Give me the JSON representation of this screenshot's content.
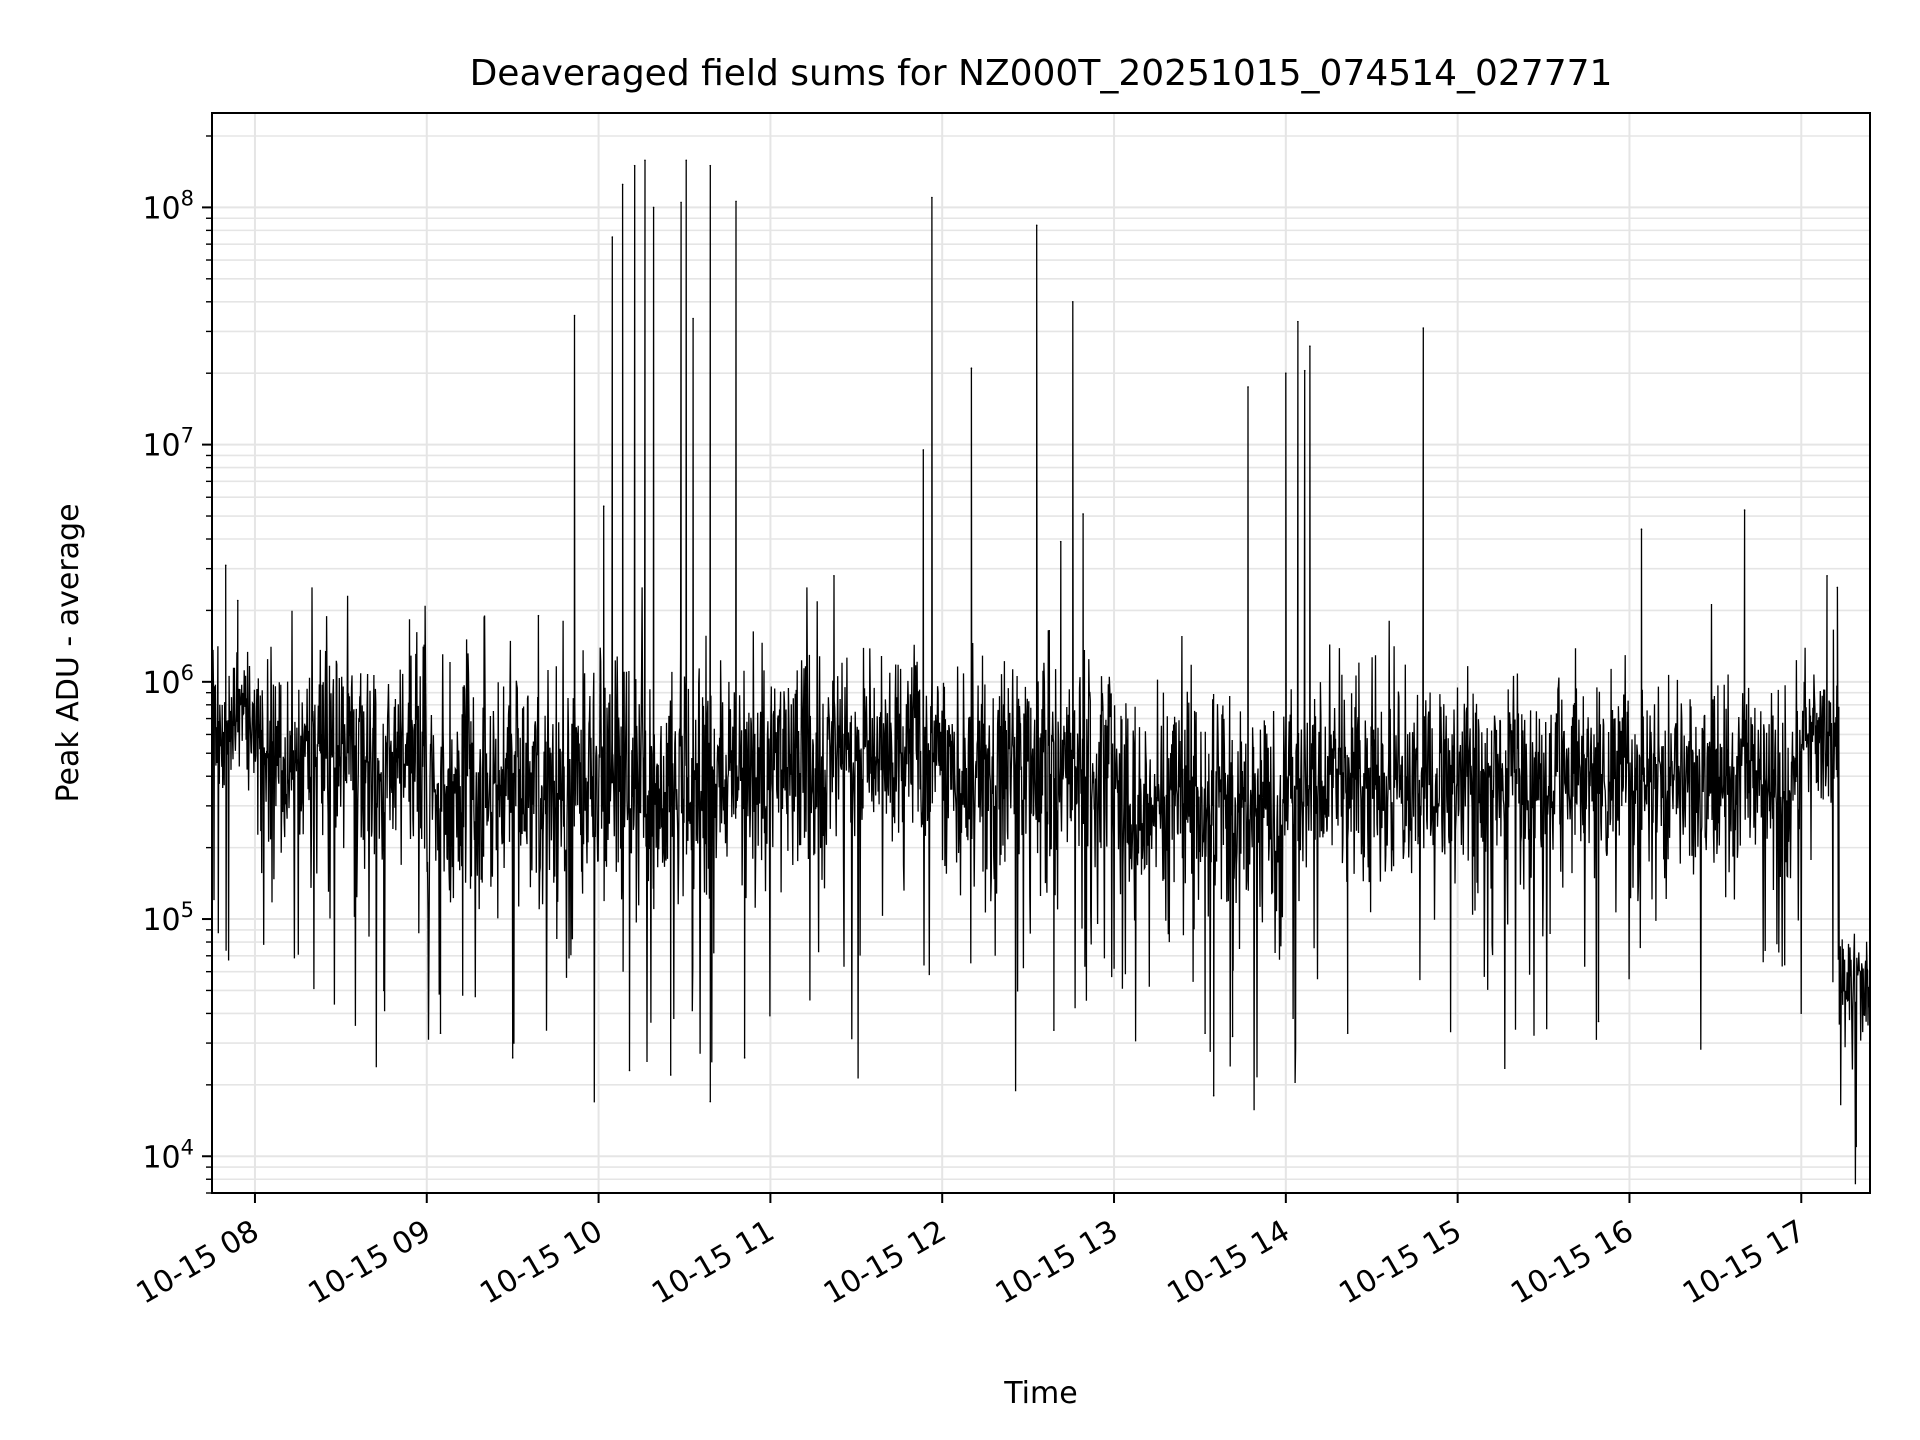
{
  "chart_data": {
    "type": "line",
    "title": "Deaveraged field sums for NZ000T_20251015_074514_027771",
    "xlabel": "Time",
    "ylabel": "Peak ADU - average",
    "yscale": "log",
    "ylim": [
      7000,
      250000000
    ],
    "xlim_hours": [
      7.75,
      17.4
    ],
    "grid": true,
    "grid_minor_y": true,
    "x_tick_values": [
      8,
      9,
      10,
      11,
      12,
      13,
      14,
      15,
      16,
      17
    ],
    "x_tick_labels": [
      "10-15 08",
      "10-15 09",
      "10-15 10",
      "10-15 11",
      "10-15 12",
      "10-15 13",
      "10-15 14",
      "10-15 15",
      "10-15 16",
      "10-15 17"
    ],
    "y_ticks": [
      {
        "value": 10000,
        "base": "10",
        "exp": "4"
      },
      {
        "value": 100000,
        "base": "10",
        "exp": "5"
      },
      {
        "value": 1000000,
        "base": "10",
        "exp": "6"
      },
      {
        "value": 10000000,
        "base": "10",
        "exp": "7"
      },
      {
        "value": 100000000,
        "base": "10",
        "exp": "8"
      }
    ],
    "line_color": "#000000",
    "grid_color": "#e5e5e5",
    "spikes": [
      {
        "t": 7.83,
        "v": 3100000
      },
      {
        "t": 7.9,
        "v": 2200000
      },
      {
        "t": 9.65,
        "v": 1900000
      },
      {
        "t": 9.86,
        "v": 35000000
      },
      {
        "t": 10.03,
        "v": 5500000
      },
      {
        "t": 10.08,
        "v": 75000000
      },
      {
        "t": 10.14,
        "v": 125000000
      },
      {
        "t": 10.21,
        "v": 150000000
      },
      {
        "t": 10.27,
        "v": 158000000
      },
      {
        "t": 10.32,
        "v": 100000000
      },
      {
        "t": 10.48,
        "v": 105000000
      },
      {
        "t": 10.51,
        "v": 158000000
      },
      {
        "t": 10.55,
        "v": 34000000
      },
      {
        "t": 10.65,
        "v": 150000000
      },
      {
        "t": 10.8,
        "v": 106000000
      },
      {
        "t": 11.37,
        "v": 2800000
      },
      {
        "t": 11.89,
        "v": 9500000
      },
      {
        "t": 11.94,
        "v": 110000000
      },
      {
        "t": 12.17,
        "v": 21000000
      },
      {
        "t": 12.55,
        "v": 84000000
      },
      {
        "t": 12.69,
        "v": 3900000
      },
      {
        "t": 12.76,
        "v": 40000000
      },
      {
        "t": 12.82,
        "v": 5100000
      },
      {
        "t": 13.78,
        "v": 17500000
      },
      {
        "t": 14.0,
        "v": 20000000
      },
      {
        "t": 14.07,
        "v": 33000000
      },
      {
        "t": 14.11,
        "v": 20500000
      },
      {
        "t": 14.14,
        "v": 26000000
      },
      {
        "t": 14.8,
        "v": 31000000
      },
      {
        "t": 16.07,
        "v": 4400000
      },
      {
        "t": 16.67,
        "v": 5300000
      },
      {
        "t": 17.15,
        "v": 2800000
      },
      {
        "t": 17.21,
        "v": 2500000
      }
    ],
    "dips": [
      {
        "t": 8.75,
        "v": 50000
      },
      {
        "t": 9.08,
        "v": 33000
      },
      {
        "t": 9.5,
        "v": 26000
      },
      {
        "t": 10.18,
        "v": 23000
      },
      {
        "t": 10.42,
        "v": 22000
      },
      {
        "t": 10.65,
        "v": 17000
      },
      {
        "t": 10.85,
        "v": 26000
      },
      {
        "t": 12.65,
        "v": 34000
      },
      {
        "t": 13.53,
        "v": 33000
      },
      {
        "t": 13.58,
        "v": 18000
      },
      {
        "t": 13.69,
        "v": 32000
      },
      {
        "t": 14.36,
        "v": 33000
      },
      {
        "t": 15.82,
        "v": 37000
      },
      {
        "t": 17.32,
        "v": 11000
      }
    ],
    "baseline_segments": [
      {
        "from": 7.75,
        "to": 8.0,
        "median": 650000,
        "spread": 0.35
      },
      {
        "from": 8.0,
        "to": 9.0,
        "median": 500000,
        "spread": 0.55
      },
      {
        "from": 9.0,
        "to": 10.0,
        "median": 330000,
        "spread": 0.65
      },
      {
        "from": 10.0,
        "to": 11.0,
        "median": 360000,
        "spread": 0.65
      },
      {
        "from": 11.0,
        "to": 12.0,
        "median": 480000,
        "spread": 0.5
      },
      {
        "from": 12.0,
        "to": 13.0,
        "median": 420000,
        "spread": 0.55
      },
      {
        "from": 13.0,
        "to": 14.0,
        "median": 300000,
        "spread": 0.6
      },
      {
        "from": 14.0,
        "to": 15.0,
        "median": 380000,
        "spread": 0.5
      },
      {
        "from": 15.0,
        "to": 16.0,
        "median": 400000,
        "spread": 0.55
      },
      {
        "from": 16.0,
        "to": 17.0,
        "median": 380000,
        "spread": 0.5
      },
      {
        "from": 17.0,
        "to": 17.22,
        "median": 650000,
        "spread": 0.35
      },
      {
        "from": 17.22,
        "to": 17.4,
        "median": 50000,
        "spread": 0.4
      }
    ]
  }
}
